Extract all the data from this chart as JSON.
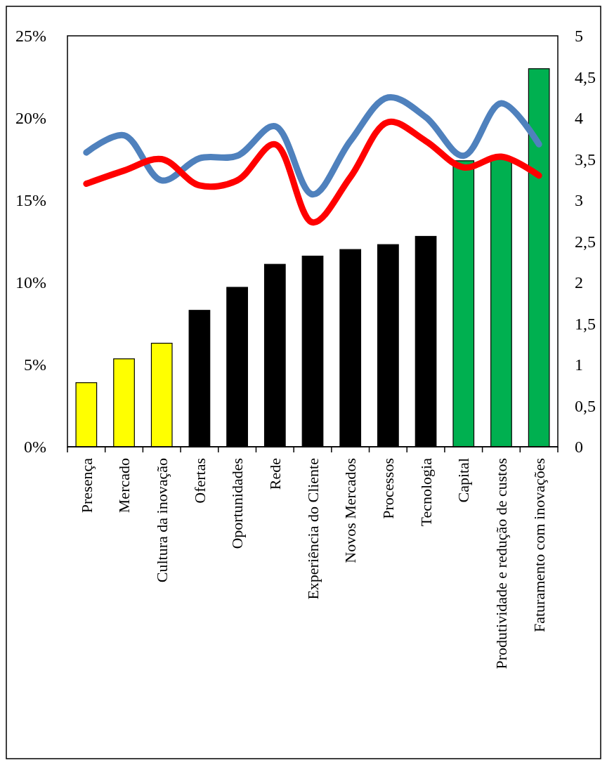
{
  "chart_data": {
    "type": "bar",
    "categories": [
      "Presença",
      "Mercado",
      "Cultura da inovação",
      "Ofertas",
      "Oportunidades",
      "Rede",
      "Experiência do Cliente",
      "Novos Mercados",
      "Processos",
      "Tecnologia",
      "Capital",
      "Produtividade e redução de custos",
      "Faturamento com inovações"
    ],
    "series": [
      {
        "colors": [
          "#ffff00",
          "#ffff00",
          "#ffff00",
          "#000000",
          "#000000",
          "#000000",
          "#000000",
          "#000000",
          "#000000",
          "#000000",
          "#00b050",
          "#00b050",
          "#00b050"
        ],
        "values": [
          3.9,
          5.35,
          6.3,
          8.3,
          9.7,
          11.1,
          11.6,
          12.0,
          12.3,
          12.8,
          17.4,
          17.5,
          23.0
        ]
      },
      {
        "type": "line",
        "axis": "y2",
        "color": "#4f81bd",
        "values": [
          3.58,
          3.79,
          3.24,
          3.51,
          3.54,
          3.9,
          3.07,
          3.72,
          4.25,
          4.01,
          3.54,
          4.18,
          3.68
        ]
      },
      {
        "type": "line",
        "axis": "y2",
        "color": "#ff0000",
        "values": [
          3.2,
          3.36,
          3.5,
          3.18,
          3.24,
          3.68,
          2.73,
          3.28,
          3.95,
          3.72,
          3.4,
          3.53,
          3.3
        ]
      }
    ],
    "ylim": [
      0,
      25
    ],
    "yticks": [
      {
        "value": 0,
        "label": "0%"
      },
      {
        "value": 5,
        "label": "5%"
      },
      {
        "value": 10,
        "label": "10%"
      },
      {
        "value": 15,
        "label": "15%"
      },
      {
        "value": 20,
        "label": "20%"
      },
      {
        "value": 25,
        "label": "25%"
      }
    ],
    "y2lim": [
      0,
      5
    ],
    "y2ticks": [
      0,
      {
        "value": 0.5,
        "label": "0,5"
      },
      1,
      {
        "value": 1.5,
        "label": "1,5"
      },
      2,
      {
        "value": 2.5,
        "label": "2,5"
      },
      3,
      {
        "value": 3.5,
        "label": "3,5"
      },
      4,
      {
        "value": 4.5,
        "label": "4,5"
      },
      5
    ],
    "grid": false
  }
}
